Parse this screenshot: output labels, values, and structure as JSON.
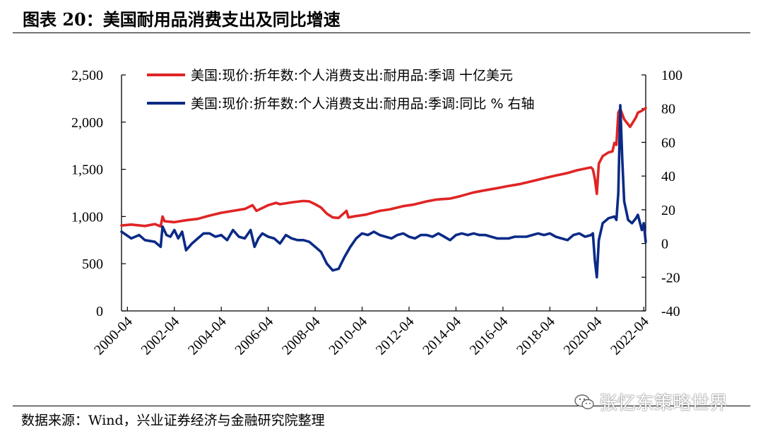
{
  "header": {
    "title": "图表 20：美国耐用品消费支出及同比增速"
  },
  "footer": {
    "source": "数据来源：Wind，兴业证券经济与金融研究院整理",
    "watermark": "张忆东策略世界",
    "watermark_icon": "wechat-icon"
  },
  "colors": {
    "series_level": "#e02424",
    "series_yoy": "#0b2a86"
  },
  "chart_data": {
    "type": "line",
    "x_ticks": [
      "2000-04",
      "2002-04",
      "2004-04",
      "2006-04",
      "2008-04",
      "2010-04",
      "2012-04",
      "2014-04",
      "2016-04",
      "2018-04",
      "2020-04",
      "2022-04"
    ],
    "y_left": {
      "ticks": [
        "0",
        "500",
        "1,000",
        "1,500",
        "2,000",
        "2,500"
      ],
      "ylim": [
        0,
        2500
      ]
    },
    "y_right": {
      "ticks": [
        "-40",
        "-20",
        "0",
        "20",
        "40",
        "60",
        "80",
        "100"
      ],
      "ylim": [
        -40,
        100
      ]
    },
    "legend_position": "top-left",
    "grid": false,
    "x_range": [
      "2000-01",
      "2022-05"
    ],
    "series": [
      {
        "name": "美国:现价:折年数:个人消费支出:耐用品:季调 十亿美元",
        "axis": "left",
        "color": "#e02424",
        "points": [
          [
            "2000-01",
            905
          ],
          [
            "2000-06",
            915
          ],
          [
            "2001-01",
            900
          ],
          [
            "2001-06",
            920
          ],
          [
            "2001-09",
            895
          ],
          [
            "2001-10",
            1000
          ],
          [
            "2001-11",
            950
          ],
          [
            "2002-04",
            940
          ],
          [
            "2002-10",
            960
          ],
          [
            "2003-04",
            975
          ],
          [
            "2003-10",
            1010
          ],
          [
            "2004-04",
            1040
          ],
          [
            "2004-10",
            1060
          ],
          [
            "2005-04",
            1080
          ],
          [
            "2005-08",
            1120
          ],
          [
            "2005-10",
            1060
          ],
          [
            "2006-04",
            1120
          ],
          [
            "2006-08",
            1145
          ],
          [
            "2006-10",
            1130
          ],
          [
            "2007-04",
            1150
          ],
          [
            "2007-10",
            1165
          ],
          [
            "2008-01",
            1160
          ],
          [
            "2008-04",
            1130
          ],
          [
            "2008-07",
            1095
          ],
          [
            "2008-10",
            1030
          ],
          [
            "2009-01",
            990
          ],
          [
            "2009-04",
            985
          ],
          [
            "2009-08",
            1060
          ],
          [
            "2009-09",
            990
          ],
          [
            "2010-01",
            1005
          ],
          [
            "2010-06",
            1020
          ],
          [
            "2011-01",
            1060
          ],
          [
            "2011-06",
            1075
          ],
          [
            "2012-01",
            1110
          ],
          [
            "2012-06",
            1125
          ],
          [
            "2013-01",
            1160
          ],
          [
            "2013-06",
            1180
          ],
          [
            "2014-01",
            1190
          ],
          [
            "2014-06",
            1215
          ],
          [
            "2015-01",
            1255
          ],
          [
            "2015-06",
            1275
          ],
          [
            "2016-01",
            1300
          ],
          [
            "2016-06",
            1320
          ],
          [
            "2017-01",
            1345
          ],
          [
            "2017-06",
            1370
          ],
          [
            "2018-01",
            1405
          ],
          [
            "2018-06",
            1430
          ],
          [
            "2019-01",
            1460
          ],
          [
            "2019-06",
            1490
          ],
          [
            "2020-01",
            1520
          ],
          [
            "2020-02",
            1500
          ],
          [
            "2020-03",
            1400
          ],
          [
            "2020-04",
            1240
          ],
          [
            "2020-05",
            1560
          ],
          [
            "2020-07",
            1640
          ],
          [
            "2020-10",
            1680
          ],
          [
            "2020-12",
            1690
          ],
          [
            "2021-01",
            1780
          ],
          [
            "2021-02",
            1760
          ],
          [
            "2021-03",
            2100
          ],
          [
            "2021-04",
            2140
          ],
          [
            "2021-06",
            2030
          ],
          [
            "2021-09",
            1950
          ],
          [
            "2021-12",
            2050
          ],
          [
            "2022-01",
            2100
          ],
          [
            "2022-03",
            2120
          ],
          [
            "2022-05",
            2150
          ]
        ]
      },
      {
        "name": "美国:现价:折年数:个人消费支出:耐用品:季调:同比 % 右轴",
        "axis": "right",
        "color": "#0b2a86",
        "points": [
          [
            "2000-01",
            7
          ],
          [
            "2000-06",
            3
          ],
          [
            "2000-10",
            5
          ],
          [
            "2001-01",
            2
          ],
          [
            "2001-06",
            1
          ],
          [
            "2001-09",
            -2
          ],
          [
            "2001-10",
            10
          ],
          [
            "2001-12",
            5
          ],
          [
            "2002-02",
            4
          ],
          [
            "2002-04",
            8
          ],
          [
            "2002-06",
            3
          ],
          [
            "2002-08",
            7
          ],
          [
            "2002-10",
            -4
          ],
          [
            "2003-01",
            0
          ],
          [
            "2003-04",
            3
          ],
          [
            "2003-07",
            6
          ],
          [
            "2003-10",
            6
          ],
          [
            "2004-01",
            4
          ],
          [
            "2004-04",
            5
          ],
          [
            "2004-07",
            2
          ],
          [
            "2004-10",
            8
          ],
          [
            "2005-01",
            4
          ],
          [
            "2005-04",
            3
          ],
          [
            "2005-07",
            8
          ],
          [
            "2005-09",
            -2
          ],
          [
            "2005-11",
            3
          ],
          [
            "2006-01",
            6
          ],
          [
            "2006-04",
            4
          ],
          [
            "2006-07",
            3
          ],
          [
            "2006-10",
            0
          ],
          [
            "2007-01",
            5
          ],
          [
            "2007-04",
            3
          ],
          [
            "2007-07",
            2
          ],
          [
            "2007-10",
            2
          ],
          [
            "2008-01",
            1
          ],
          [
            "2008-04",
            -2
          ],
          [
            "2008-07",
            -5
          ],
          [
            "2008-10",
            -12
          ],
          [
            "2009-01",
            -16
          ],
          [
            "2009-04",
            -15
          ],
          [
            "2009-07",
            -8
          ],
          [
            "2009-10",
            -2
          ],
          [
            "2010-01",
            3
          ],
          [
            "2010-04",
            6
          ],
          [
            "2010-07",
            5
          ],
          [
            "2010-10",
            7
          ],
          [
            "2011-01",
            5
          ],
          [
            "2011-04",
            4
          ],
          [
            "2011-07",
            3
          ],
          [
            "2011-10",
            5
          ],
          [
            "2012-01",
            6
          ],
          [
            "2012-04",
            4
          ],
          [
            "2012-07",
            3
          ],
          [
            "2012-10",
            5
          ],
          [
            "2013-01",
            5
          ],
          [
            "2013-04",
            4
          ],
          [
            "2013-07",
            6
          ],
          [
            "2013-10",
            4
          ],
          [
            "2014-01",
            2
          ],
          [
            "2014-04",
            5
          ],
          [
            "2014-07",
            6
          ],
          [
            "2014-10",
            5
          ],
          [
            "2015-01",
            6
          ],
          [
            "2015-04",
            5
          ],
          [
            "2015-07",
            5
          ],
          [
            "2015-10",
            4
          ],
          [
            "2016-01",
            3
          ],
          [
            "2016-04",
            3
          ],
          [
            "2016-07",
            3
          ],
          [
            "2016-10",
            4
          ],
          [
            "2017-01",
            4
          ],
          [
            "2017-04",
            4
          ],
          [
            "2017-07",
            5
          ],
          [
            "2017-10",
            6
          ],
          [
            "2018-01",
            5
          ],
          [
            "2018-04",
            6
          ],
          [
            "2018-07",
            4
          ],
          [
            "2018-10",
            3
          ],
          [
            "2019-01",
            2
          ],
          [
            "2019-04",
            5
          ],
          [
            "2019-07",
            6
          ],
          [
            "2019-10",
            4
          ],
          [
            "2020-01",
            5
          ],
          [
            "2020-02",
            6
          ],
          [
            "2020-03",
            -10
          ],
          [
            "2020-04",
            -20
          ],
          [
            "2020-05",
            2
          ],
          [
            "2020-07",
            12
          ],
          [
            "2020-10",
            15
          ],
          [
            "2021-01",
            16
          ],
          [
            "2021-02",
            14
          ],
          [
            "2021-03",
            30
          ],
          [
            "2021-04",
            82
          ],
          [
            "2021-05",
            50
          ],
          [
            "2021-06",
            25
          ],
          [
            "2021-08",
            14
          ],
          [
            "2021-10",
            12
          ],
          [
            "2021-12",
            15
          ],
          [
            "2022-01",
            17
          ],
          [
            "2022-03",
            8
          ],
          [
            "2022-04",
            12
          ],
          [
            "2022-05",
            1
          ]
        ]
      }
    ]
  }
}
